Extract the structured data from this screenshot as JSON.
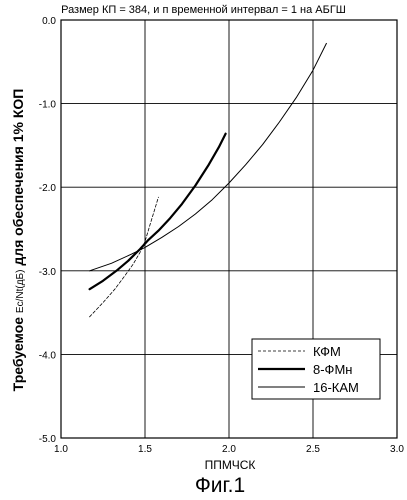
{
  "figure": {
    "title": "Размер КП = 384, и п временной интервал = 1 на АБГШ",
    "caption": "Фиг.1"
  },
  "chart_data": {
    "type": "line",
    "title": "Размер КП = 384, и п временной интервал = 1 на АБГШ",
    "xlabel": "ППМЧСК",
    "ylabel_parts": [
      "Требуемое ",
      "Ec/Nt(дБ)",
      " для обеспечения 1% КОП"
    ],
    "xlim": [
      1.0,
      3.0
    ],
    "ylim": [
      -5.0,
      0.0
    ],
    "x_ticks": [
      "1.0",
      "1.5",
      "2.0",
      "2.5",
      "3.0"
    ],
    "y_ticks": [
      "0.0",
      "-1.0",
      "-2.0",
      "-3.0",
      "-4.0",
      "-5.0"
    ],
    "grid": true,
    "legend_position": "bottom-right",
    "series": [
      {
        "name": "КФМ",
        "style": "dashed",
        "stroke_width": 0.8,
        "x": [
          1.17,
          1.25,
          1.32,
          1.38,
          1.43,
          1.47,
          1.5,
          1.53,
          1.56,
          1.58
        ],
        "y": [
          -3.55,
          -3.38,
          -3.22,
          -3.06,
          -2.92,
          -2.78,
          -2.65,
          -2.45,
          -2.25,
          -2.12
        ]
      },
      {
        "name": "8-ФМн",
        "style": "solid",
        "stroke_width": 2.2,
        "x": [
          1.17,
          1.25,
          1.33,
          1.4,
          1.47,
          1.52,
          1.58,
          1.65,
          1.72,
          1.8,
          1.88,
          1.94,
          1.98
        ],
        "y": [
          -3.22,
          -3.12,
          -3.0,
          -2.88,
          -2.74,
          -2.63,
          -2.52,
          -2.37,
          -2.2,
          -1.98,
          -1.73,
          -1.52,
          -1.36
        ]
      },
      {
        "name": "16-КАМ",
        "style": "solid",
        "stroke_width": 1.0,
        "x": [
          1.17,
          1.3,
          1.42,
          1.5,
          1.6,
          1.7,
          1.8,
          1.9,
          2.0,
          2.1,
          2.2,
          2.3,
          2.4,
          2.5,
          2.58
        ],
        "y": [
          -3.0,
          -2.91,
          -2.8,
          -2.72,
          -2.6,
          -2.47,
          -2.32,
          -2.15,
          -1.95,
          -1.73,
          -1.49,
          -1.22,
          -0.93,
          -0.6,
          -0.28
        ]
      }
    ]
  }
}
